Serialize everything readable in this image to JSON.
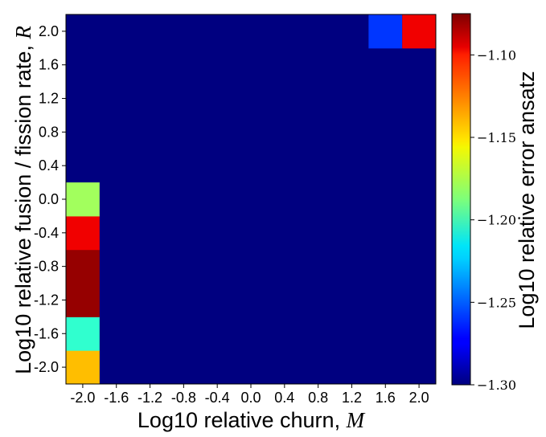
{
  "chart_data": {
    "type": "heatmap",
    "xlabel": "Log10 relative churn, ",
    "xlabel_symbol": "M",
    "ylabel": "Log10 relative fusion / fission rate, ",
    "ylabel_symbol": "R",
    "x_ticks": [
      "-2.0",
      "-1.6",
      "-1.2",
      "-0.8",
      "-0.4",
      "0.0",
      "0.4",
      "0.8",
      "1.2",
      "1.6",
      "2.0"
    ],
    "y_ticks": [
      "-2.0",
      "-1.6",
      "-1.2",
      "-0.8",
      "-0.4",
      "0.0",
      "0.4",
      "0.8",
      "1.2",
      "1.6",
      "2.0"
    ],
    "colorbar": {
      "label": "Log10 relative error ansatz",
      "ticks": [
        -1.3,
        -1.25,
        -1.2,
        -1.15,
        -1.1
      ],
      "tick_labels": [
        "−1.30",
        "−1.25",
        "−1.20",
        "−1.15",
        "−1.10"
      ],
      "range": [
        -1.3,
        -1.075
      ],
      "colormap": "jet"
    },
    "x_values": [
      -2.0,
      -1.6,
      -1.2,
      -0.8,
      -0.4,
      0.0,
      0.4,
      0.8,
      1.2,
      1.6,
      2.0
    ],
    "y_values": [
      -2.0,
      -1.6,
      -1.2,
      -0.8,
      -0.4,
      0.0,
      0.4,
      0.8,
      1.2,
      1.6,
      2.0
    ],
    "background_value": -1.3,
    "cells": [
      {
        "x": -2.0,
        "y": -2.0,
        "value": -1.145
      },
      {
        "x": -2.0,
        "y": -1.6,
        "value": -1.205
      },
      {
        "x": -2.0,
        "y": -1.2,
        "value": -1.08
      },
      {
        "x": -2.0,
        "y": -0.8,
        "value": -1.08
      },
      {
        "x": -2.0,
        "y": -0.4,
        "value": -1.1
      },
      {
        "x": -2.0,
        "y": 0.0,
        "value": -1.18
      },
      {
        "x": 1.6,
        "y": 2.0,
        "value": -1.26
      },
      {
        "x": 2.0,
        "y": 2.0,
        "value": -1.1
      }
    ]
  }
}
